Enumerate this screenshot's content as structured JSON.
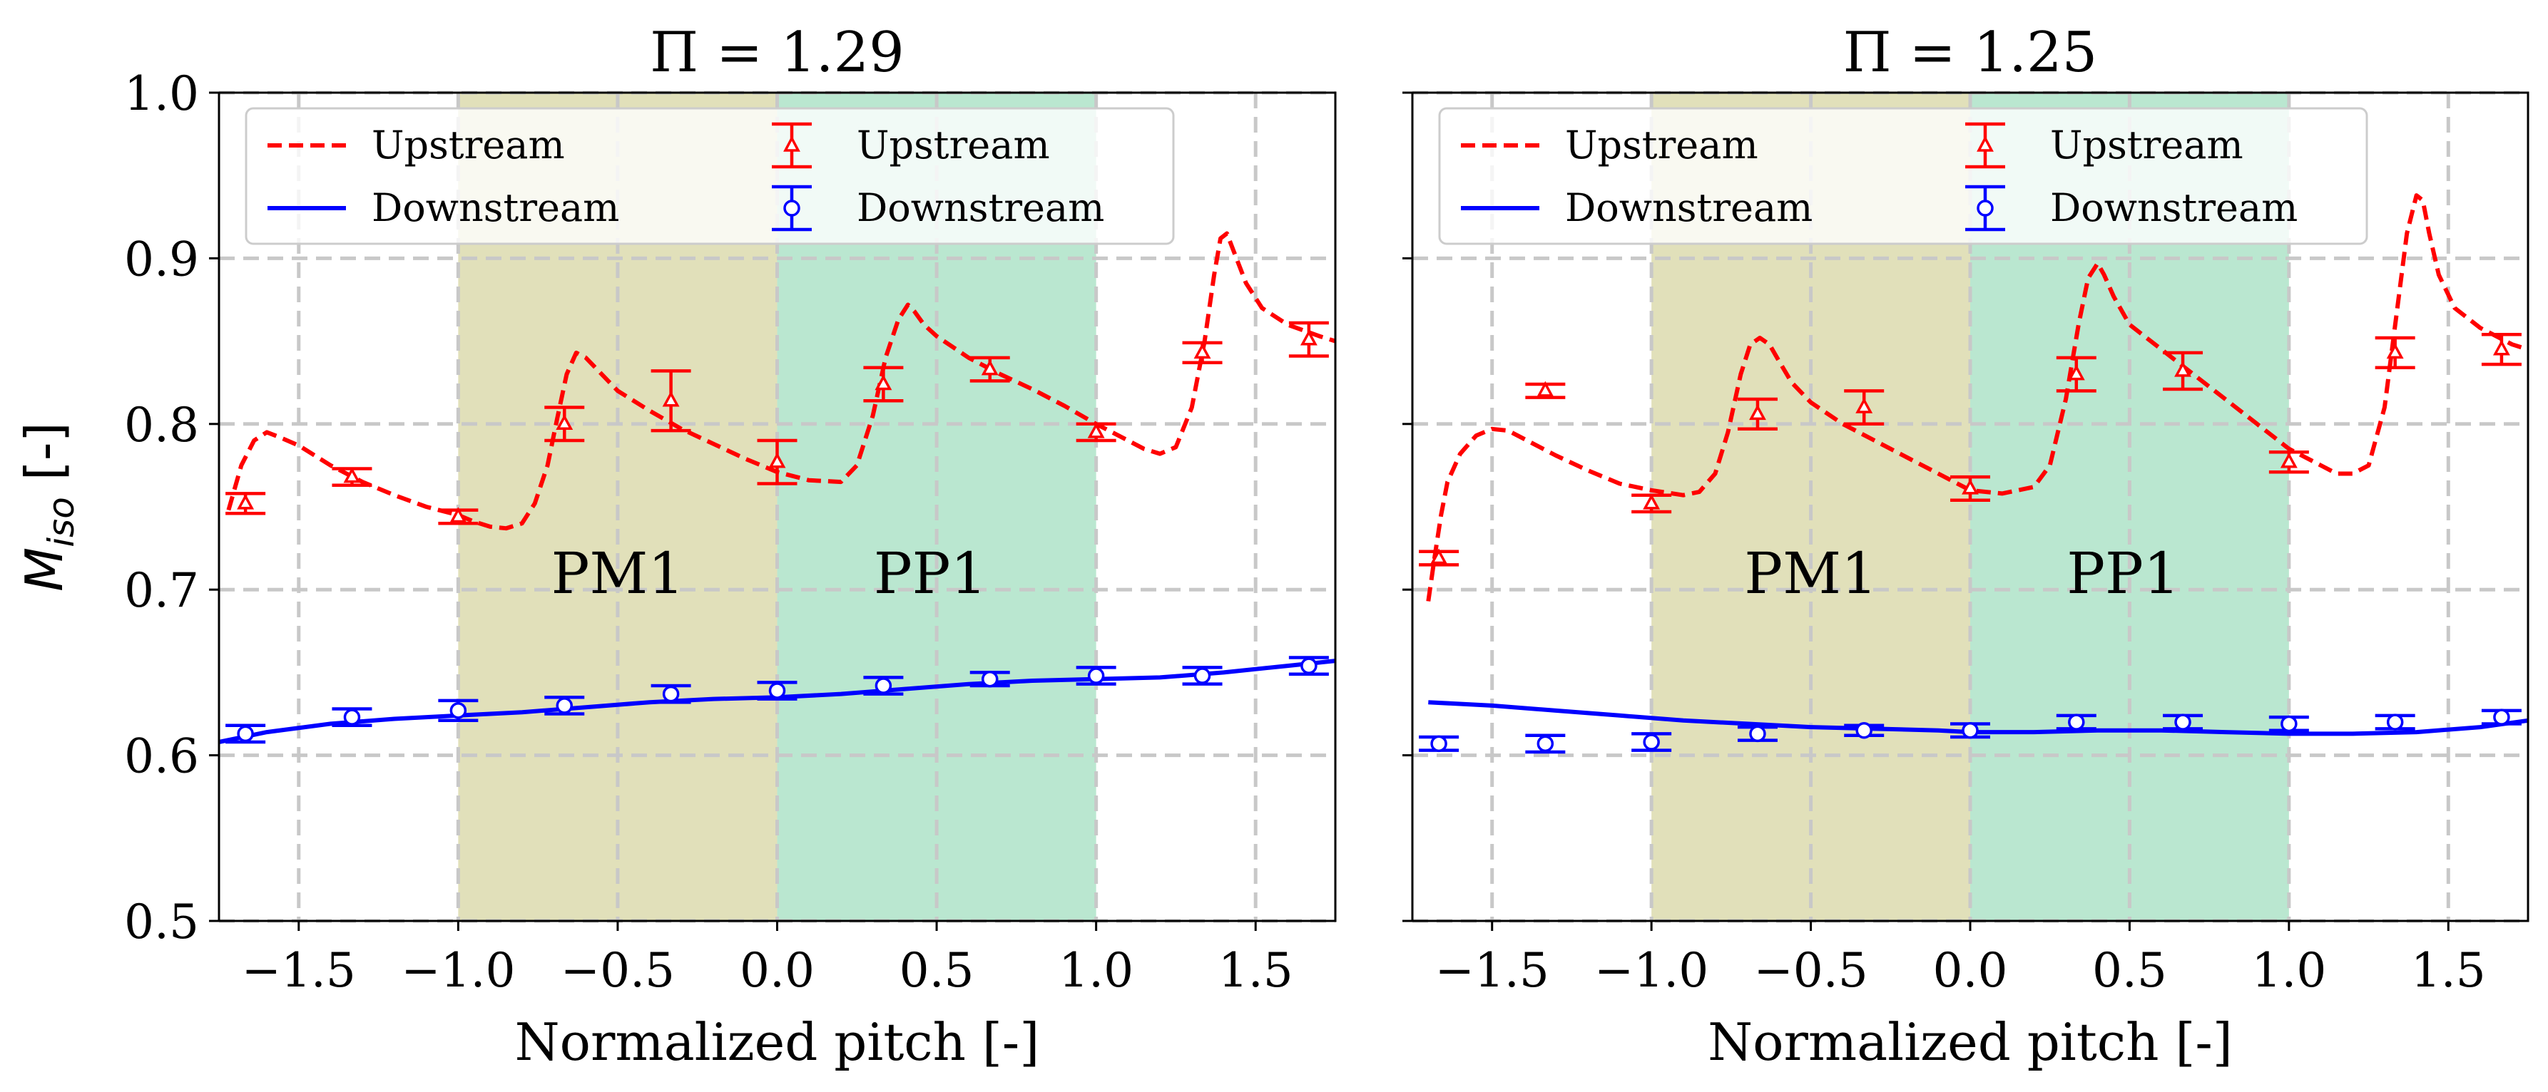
{
  "chart_data": [
    {
      "type": "line",
      "title": "Π = 1.29",
      "xlabel": "Normalized pitch [-]",
      "ylabel": "M_iso [-]",
      "ylabel_main": "M",
      "ylabel_sub": "iso",
      "ylabel_suffix": " [-]",
      "xlim": [
        -1.75,
        1.75
      ],
      "ylim": [
        0.5,
        1.0
      ],
      "xticks": [
        -1.5,
        -1.0,
        -0.5,
        0.0,
        0.5,
        1.0,
        1.5
      ],
      "xtick_labels": [
        "−1.5",
        "−1.0",
        "−0.5",
        "0.0",
        "0.5",
        "1.0",
        "1.5"
      ],
      "yticks": [
        0.5,
        0.6,
        0.7,
        0.8,
        0.9,
        1.0
      ],
      "ytick_labels": [
        "0.5",
        "0.6",
        "0.7",
        "0.8",
        "0.9",
        "1.0"
      ],
      "grid": true,
      "regions": [
        {
          "label": "PM1",
          "x0": -1.0,
          "x1": 0.0,
          "color": "#d8d7a6",
          "label_x": -0.5,
          "label_y": 0.71
        },
        {
          "label": "PP1",
          "x0": 0.0,
          "x1": 1.0,
          "color": "#a6e0c3",
          "label_x": 0.48,
          "label_y": 0.71
        }
      ],
      "legend": {
        "placement": "top",
        "entries": [
          "Upstream",
          "Downstream",
          "Upstream",
          "Downstream"
        ]
      },
      "series": [
        {
          "name": "Upstream",
          "kind": "dashed-line",
          "color": "#ff0000",
          "x": [
            -1.72,
            -1.68,
            -1.64,
            -1.6,
            -1.56,
            -1.5,
            -1.4,
            -1.3,
            -1.2,
            -1.1,
            -1.0,
            -0.95,
            -0.9,
            -0.85,
            -0.8,
            -0.76,
            -0.72,
            -0.69,
            -0.66,
            -0.63,
            -0.6,
            -0.56,
            -0.5,
            -0.4,
            -0.3,
            -0.2,
            -0.1,
            0.0,
            0.1,
            0.2,
            0.25,
            0.3,
            0.34,
            0.38,
            0.41,
            0.43,
            0.46,
            0.5,
            0.6,
            0.7,
            0.8,
            0.9,
            1.0,
            1.1,
            1.15,
            1.2,
            1.25,
            1.3,
            1.34,
            1.37,
            1.39,
            1.41,
            1.43,
            1.47,
            1.52,
            1.6,
            1.7,
            1.75
          ],
          "y": [
            0.748,
            0.775,
            0.79,
            0.795,
            0.792,
            0.787,
            0.775,
            0.765,
            0.757,
            0.75,
            0.745,
            0.741,
            0.738,
            0.737,
            0.74,
            0.752,
            0.775,
            0.803,
            0.83,
            0.843,
            0.84,
            0.832,
            0.82,
            0.808,
            0.797,
            0.788,
            0.779,
            0.771,
            0.766,
            0.765,
            0.775,
            0.805,
            0.84,
            0.863,
            0.872,
            0.868,
            0.86,
            0.853,
            0.84,
            0.83,
            0.821,
            0.811,
            0.8,
            0.79,
            0.785,
            0.782,
            0.786,
            0.81,
            0.85,
            0.89,
            0.912,
            0.915,
            0.905,
            0.885,
            0.87,
            0.86,
            0.853,
            0.85
          ]
        },
        {
          "name": "Downstream",
          "kind": "solid-line",
          "color": "#0000ff",
          "x": [
            -1.75,
            -1.6,
            -1.4,
            -1.2,
            -1.0,
            -0.8,
            -0.6,
            -0.4,
            -0.2,
            0.0,
            0.2,
            0.4,
            0.6,
            0.8,
            1.0,
            1.2,
            1.4,
            1.6,
            1.75
          ],
          "y": [
            0.608,
            0.614,
            0.619,
            0.622,
            0.624,
            0.626,
            0.629,
            0.632,
            0.634,
            0.635,
            0.637,
            0.64,
            0.643,
            0.645,
            0.646,
            0.647,
            0.65,
            0.654,
            0.657
          ]
        },
        {
          "name": "Upstream",
          "kind": "triangle-errorbar",
          "color": "#ff0000",
          "x": [
            -1.667,
            -1.333,
            -1.0,
            -0.667,
            -0.333,
            0.0,
            0.333,
            0.667,
            1.0,
            1.333,
            1.667
          ],
          "y": [
            0.752,
            0.768,
            0.744,
            0.8,
            0.814,
            0.777,
            0.824,
            0.833,
            0.795,
            0.843,
            0.851
          ],
          "err": [
            0.006,
            0.005,
            0.004,
            0.01,
            0.018,
            0.013,
            0.01,
            0.007,
            0.005,
            0.006,
            0.01
          ]
        },
        {
          "name": "Downstream",
          "kind": "circle-errorbar",
          "color": "#0000ff",
          "x": [
            -1.667,
            -1.333,
            -1.0,
            -0.667,
            -0.333,
            0.0,
            0.333,
            0.667,
            1.0,
            1.333,
            1.667
          ],
          "y": [
            0.613,
            0.623,
            0.627,
            0.63,
            0.637,
            0.639,
            0.642,
            0.646,
            0.648,
            0.648,
            0.654
          ],
          "err": [
            0.005,
            0.005,
            0.006,
            0.005,
            0.005,
            0.005,
            0.005,
            0.004,
            0.005,
            0.005,
            0.005
          ]
        }
      ]
    },
    {
      "type": "line",
      "title": "Π = 1.25",
      "xlabel": "Normalized pitch [-]",
      "ylabel": "",
      "xlim": [
        -1.75,
        1.75
      ],
      "ylim": [
        0.5,
        1.0
      ],
      "xticks": [
        -1.5,
        -1.0,
        -0.5,
        0.0,
        0.5,
        1.0,
        1.5
      ],
      "xtick_labels": [
        "−1.5",
        "−1.0",
        "−0.5",
        "0.0",
        "0.5",
        "1.0",
        "1.5"
      ],
      "yticks": [
        0.5,
        0.6,
        0.7,
        0.8,
        0.9,
        1.0
      ],
      "ytick_labels": [],
      "grid": true,
      "regions": [
        {
          "label": "PM1",
          "x0": -1.0,
          "x1": 0.0,
          "color": "#d8d7a6",
          "label_x": -0.5,
          "label_y": 0.71
        },
        {
          "label": "PP1",
          "x0": 0.0,
          "x1": 1.0,
          "color": "#a6e0c3",
          "label_x": 0.48,
          "label_y": 0.71
        }
      ],
      "legend": {
        "placement": "top",
        "entries": [
          "Upstream",
          "Downstream",
          "Upstream",
          "Downstream"
        ]
      },
      "series": [
        {
          "name": "Upstream",
          "kind": "dashed-line",
          "color": "#ff0000",
          "x": [
            -1.7,
            -1.68,
            -1.66,
            -1.64,
            -1.6,
            -1.55,
            -1.5,
            -1.45,
            -1.4,
            -1.3,
            -1.2,
            -1.1,
            -1.0,
            -0.9,
            -0.85,
            -0.8,
            -0.76,
            -0.72,
            -0.69,
            -0.66,
            -0.63,
            -0.6,
            -0.56,
            -0.5,
            -0.4,
            -0.3,
            -0.2,
            -0.1,
            0.0,
            0.1,
            0.2,
            0.25,
            0.3,
            0.34,
            0.37,
            0.4,
            0.42,
            0.45,
            0.5,
            0.6,
            0.7,
            0.8,
            0.9,
            1.0,
            1.1,
            1.15,
            1.2,
            1.25,
            1.3,
            1.34,
            1.37,
            1.4,
            1.42,
            1.44,
            1.47,
            1.52,
            1.6,
            1.7,
            1.75
          ],
          "y": [
            0.693,
            0.72,
            0.745,
            0.765,
            0.782,
            0.793,
            0.797,
            0.796,
            0.791,
            0.781,
            0.772,
            0.764,
            0.76,
            0.757,
            0.759,
            0.77,
            0.795,
            0.83,
            0.848,
            0.852,
            0.848,
            0.838,
            0.825,
            0.813,
            0.8,
            0.79,
            0.78,
            0.77,
            0.76,
            0.758,
            0.762,
            0.775,
            0.815,
            0.86,
            0.888,
            0.897,
            0.89,
            0.877,
            0.86,
            0.845,
            0.83,
            0.815,
            0.8,
            0.785,
            0.775,
            0.77,
            0.77,
            0.775,
            0.81,
            0.87,
            0.915,
            0.938,
            0.935,
            0.915,
            0.89,
            0.87,
            0.858,
            0.848,
            0.845
          ]
        },
        {
          "name": "Downstream",
          "kind": "solid-line",
          "color": "#0000ff",
          "x": [
            -1.7,
            -1.5,
            -1.3,
            -1.1,
            -0.9,
            -0.7,
            -0.5,
            -0.3,
            -0.1,
            0.0,
            0.2,
            0.4,
            0.6,
            0.8,
            1.0,
            1.2,
            1.4,
            1.6,
            1.75
          ],
          "y": [
            0.632,
            0.63,
            0.627,
            0.624,
            0.621,
            0.619,
            0.617,
            0.616,
            0.615,
            0.614,
            0.614,
            0.615,
            0.615,
            0.614,
            0.613,
            0.613,
            0.614,
            0.617,
            0.621
          ]
        },
        {
          "name": "Upstream",
          "kind": "triangle-errorbar",
          "color": "#ff0000",
          "x": [
            -1.667,
            -1.333,
            -1.0,
            -0.667,
            -0.333,
            0.0,
            0.333,
            0.667,
            1.0,
            1.333,
            1.667
          ],
          "y": [
            0.719,
            0.82,
            0.752,
            0.806,
            0.81,
            0.761,
            0.83,
            0.832,
            0.777,
            0.843,
            0.845
          ],
          "err": [
            0.004,
            0.004,
            0.005,
            0.009,
            0.01,
            0.007,
            0.01,
            0.011,
            0.006,
            0.009,
            0.009
          ]
        },
        {
          "name": "Downstream",
          "kind": "circle-errorbar",
          "color": "#0000ff",
          "x": [
            -1.667,
            -1.333,
            -1.0,
            -0.667,
            -0.333,
            0.0,
            0.333,
            0.667,
            1.0,
            1.333,
            1.667
          ],
          "y": [
            0.607,
            0.607,
            0.608,
            0.613,
            0.615,
            0.615,
            0.62,
            0.62,
            0.619,
            0.62,
            0.623
          ],
          "err": [
            0.004,
            0.005,
            0.005,
            0.004,
            0.003,
            0.004,
            0.004,
            0.004,
            0.004,
            0.004,
            0.004
          ]
        }
      ]
    }
  ]
}
